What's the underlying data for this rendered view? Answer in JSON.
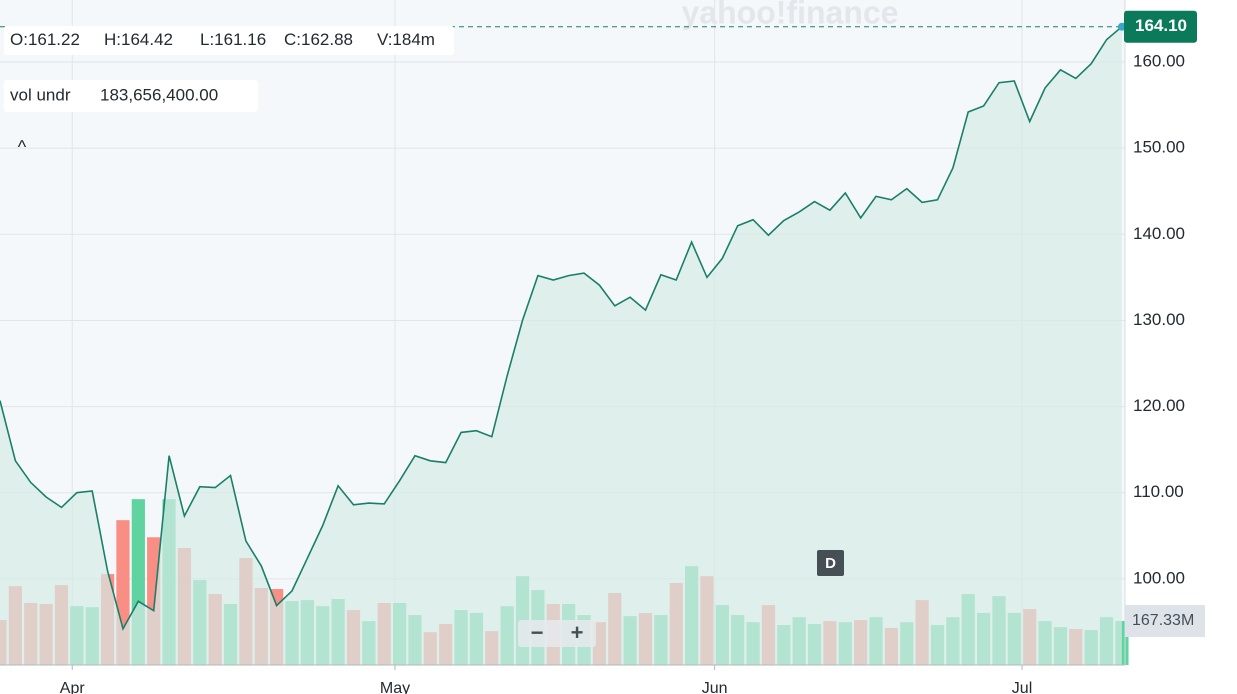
{
  "chart_data": {
    "type": "line",
    "x": [
      0,
      1,
      2,
      3,
      4,
      5,
      6,
      7,
      8,
      9,
      10,
      11,
      12,
      13,
      14,
      15,
      16,
      17,
      18,
      19,
      20,
      21,
      22,
      23,
      24,
      25,
      26,
      27,
      28,
      29,
      30,
      31,
      32,
      33,
      34,
      35,
      36,
      37,
      38,
      39,
      40,
      41,
      42,
      43,
      44,
      45,
      46,
      47,
      48,
      49,
      50,
      51,
      52,
      53,
      54,
      55,
      56,
      57,
      58,
      59,
      60,
      61,
      62,
      63,
      64,
      65,
      66,
      67,
      68,
      69,
      70,
      71,
      72,
      73
    ],
    "xlim": [
      0,
      73.2
    ],
    "xticks": [
      {
        "value": 4.7,
        "label": "Apr"
      },
      {
        "value": 25.7,
        "label": "May"
      },
      {
        "value": 46.5,
        "label": "Jun"
      },
      {
        "value": 66.5,
        "label": "Jul"
      }
    ],
    "ylim": [
      90,
      167.2
    ],
    "yticks": [
      {
        "value": 100,
        "label": "100.00"
      },
      {
        "value": 110,
        "label": "110.00"
      },
      {
        "value": 120,
        "label": "120.00"
      },
      {
        "value": 130,
        "label": "130.00"
      },
      {
        "value": 140,
        "label": "140.00"
      },
      {
        "value": 150,
        "label": "150.00"
      },
      {
        "value": 160,
        "label": "160.00"
      }
    ],
    "y2lim": [
      0,
      2530
    ],
    "grid": true,
    "series": [
      {
        "type": "line",
        "color": "#1a7f6a",
        "fill": "#d6ebe6",
        "values": [
          120.7,
          113.7,
          111.2,
          109.5,
          108.3,
          110.0,
          110.2,
          100.9,
          94.2,
          97.4,
          96.3,
          114.3,
          107.3,
          110.7,
          110.6,
          112.0,
          104.4,
          101.5,
          96.9,
          98.6,
          102.4,
          106.2,
          110.8,
          108.6,
          108.8,
          108.7,
          111.4,
          114.3,
          113.7,
          113.5,
          117.0,
          117.2,
          116.5,
          123.6,
          130.0,
          135.2,
          134.7,
          135.2,
          135.5,
          134.1,
          131.7,
          132.7,
          131.2,
          135.3,
          134.7,
          139.1,
          135.0,
          137.2,
          141.0,
          141.7,
          139.9,
          141.6,
          142.6,
          143.8,
          142.8,
          144.8,
          141.9,
          144.4,
          144.0,
          145.3,
          143.7,
          144.0,
          147.7,
          154.2,
          154.9,
          157.6,
          157.8,
          153.1,
          157.0,
          159.1,
          158.1,
          159.8,
          162.6,
          164.1
        ]
      },
      {
        "type": "bar",
        "axis": "y2",
        "values": [
          171,
          300,
          236,
          232,
          304,
          224,
          220,
          346,
          551,
          631,
          486,
          631,
          445,
          323,
          270,
          232,
          407,
          293,
          289,
          243,
          247,
          224,
          251,
          209,
          167,
          236,
          236,
          190,
          125,
          156,
          209,
          198,
          129,
          224,
          338,
          285,
          232,
          232,
          190,
          163,
          274,
          186,
          198,
          190,
          312,
          376,
          338,
          228,
          190,
          163,
          228,
          152,
          182,
          156,
          167,
          163,
          171,
          182,
          141,
          163,
          247,
          152,
          182,
          270,
          198,
          262,
          198,
          213,
          167,
          144,
          137,
          133,
          182,
          167.33
        ],
        "colors": [
          "#f98e85",
          "#f98e85",
          "#f98e85",
          "#f98e85",
          "#f98e85",
          "#5fd4a0",
          "#5fd4a0",
          "#f98e85",
          "#f98e85",
          "#5fd4a0",
          "#f98e85",
          "#5fd4a0",
          "#f98e85",
          "#5fd4a0",
          "#f98e85",
          "#5fd4a0",
          "#f98e85",
          "#f98e85",
          "#f98e85",
          "#5fd4a0",
          "#5fd4a0",
          "#5fd4a0",
          "#5fd4a0",
          "#f98e85",
          "#5fd4a0",
          "#f98e85",
          "#5fd4a0",
          "#5fd4a0",
          "#f98e85",
          "#f98e85",
          "#5fd4a0",
          "#5fd4a0",
          "#f98e85",
          "#5fd4a0",
          "#5fd4a0",
          "#5fd4a0",
          "#f98e85",
          "#5fd4a0",
          "#5fd4a0",
          "#f98e85",
          "#f98e85",
          "#5fd4a0",
          "#f98e85",
          "#5fd4a0",
          "#f98e85",
          "#5fd4a0",
          "#f98e85",
          "#5fd4a0",
          "#5fd4a0",
          "#5fd4a0",
          "#f98e85",
          "#5fd4a0",
          "#5fd4a0",
          "#5fd4a0",
          "#f98e85",
          "#5fd4a0",
          "#f98e85",
          "#5fd4a0",
          "#f98e85",
          "#5fd4a0",
          "#f98e85",
          "#5fd4a0",
          "#5fd4a0",
          "#5fd4a0",
          "#5fd4a0",
          "#5fd4a0",
          "#5fd4a0",
          "#f98e85",
          "#5fd4a0",
          "#5fd4a0",
          "#f98e85",
          "#5fd4a0",
          "#5fd4a0",
          "#5fd4a0"
        ]
      }
    ],
    "last_label": "164.10",
    "last_volume_label": "167.33M"
  },
  "header": {
    "ohlc": [
      "O:161.22",
      "H:164.42",
      "L:161.16",
      "C:162.88",
      "V:184m"
    ],
    "indicator_name": "vol undr",
    "indicator_value": "183,656,400.00"
  },
  "watermark": "yahoo!finance",
  "collapse": "^",
  "interval_badge": "D",
  "zoom_out": "−",
  "zoom_in": "+"
}
